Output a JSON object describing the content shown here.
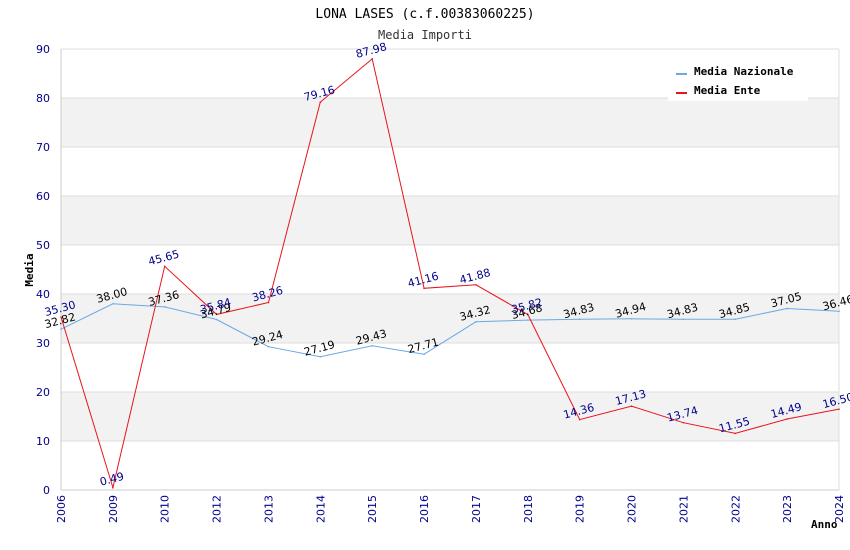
{
  "chart_data": {
    "type": "line",
    "title": "LONA LASES (c.f.00383060225)",
    "subtitle": "Media Importi",
    "xlabel": "Anno",
    "ylabel": "Media",
    "ylim": [
      0,
      90
    ],
    "yticks": [
      0,
      10,
      20,
      30,
      40,
      50,
      60,
      70,
      80,
      90
    ],
    "grid": "horizontal bands",
    "legend_position": "top-right",
    "categories": [
      "2006",
      "2009",
      "2010",
      "2012",
      "2013",
      "2014",
      "2015",
      "2016",
      "2017",
      "2018",
      "2019",
      "2020",
      "2021",
      "2022",
      "2023",
      "2024"
    ],
    "series": [
      {
        "name": "Media Nazionale",
        "color": "#6aa9e6",
        "label_color": "#000000",
        "values": [
          32.82,
          38.0,
          37.36,
          34.79,
          29.24,
          27.19,
          29.43,
          27.71,
          34.32,
          34.68,
          34.83,
          34.94,
          34.83,
          34.85,
          37.05,
          36.46
        ],
        "labels": [
          "32.82",
          "38.00",
          "37.36",
          "34.79",
          "29.24",
          "27.19",
          "29.43",
          "27.71",
          "34.32",
          "34.68",
          "34.83",
          "34.94",
          "34.83",
          "34.85",
          "37.05",
          "36.46"
        ]
      },
      {
        "name": "Media Ente",
        "color": "#e8141b",
        "label_color": "#00008b",
        "values": [
          35.3,
          0.49,
          45.65,
          35.84,
          38.26,
          79.16,
          87.98,
          41.16,
          41.88,
          35.82,
          14.36,
          17.13,
          13.74,
          11.55,
          14.49,
          16.5
        ],
        "labels": [
          "35.30",
          "0.49",
          "45.65",
          "35.84",
          "38.26",
          "79.16",
          "87.98",
          "41.16",
          "41.88",
          "35.82",
          "14.36",
          "17.13",
          "13.74",
          "11.55",
          "14.49",
          "16.50"
        ]
      }
    ]
  }
}
